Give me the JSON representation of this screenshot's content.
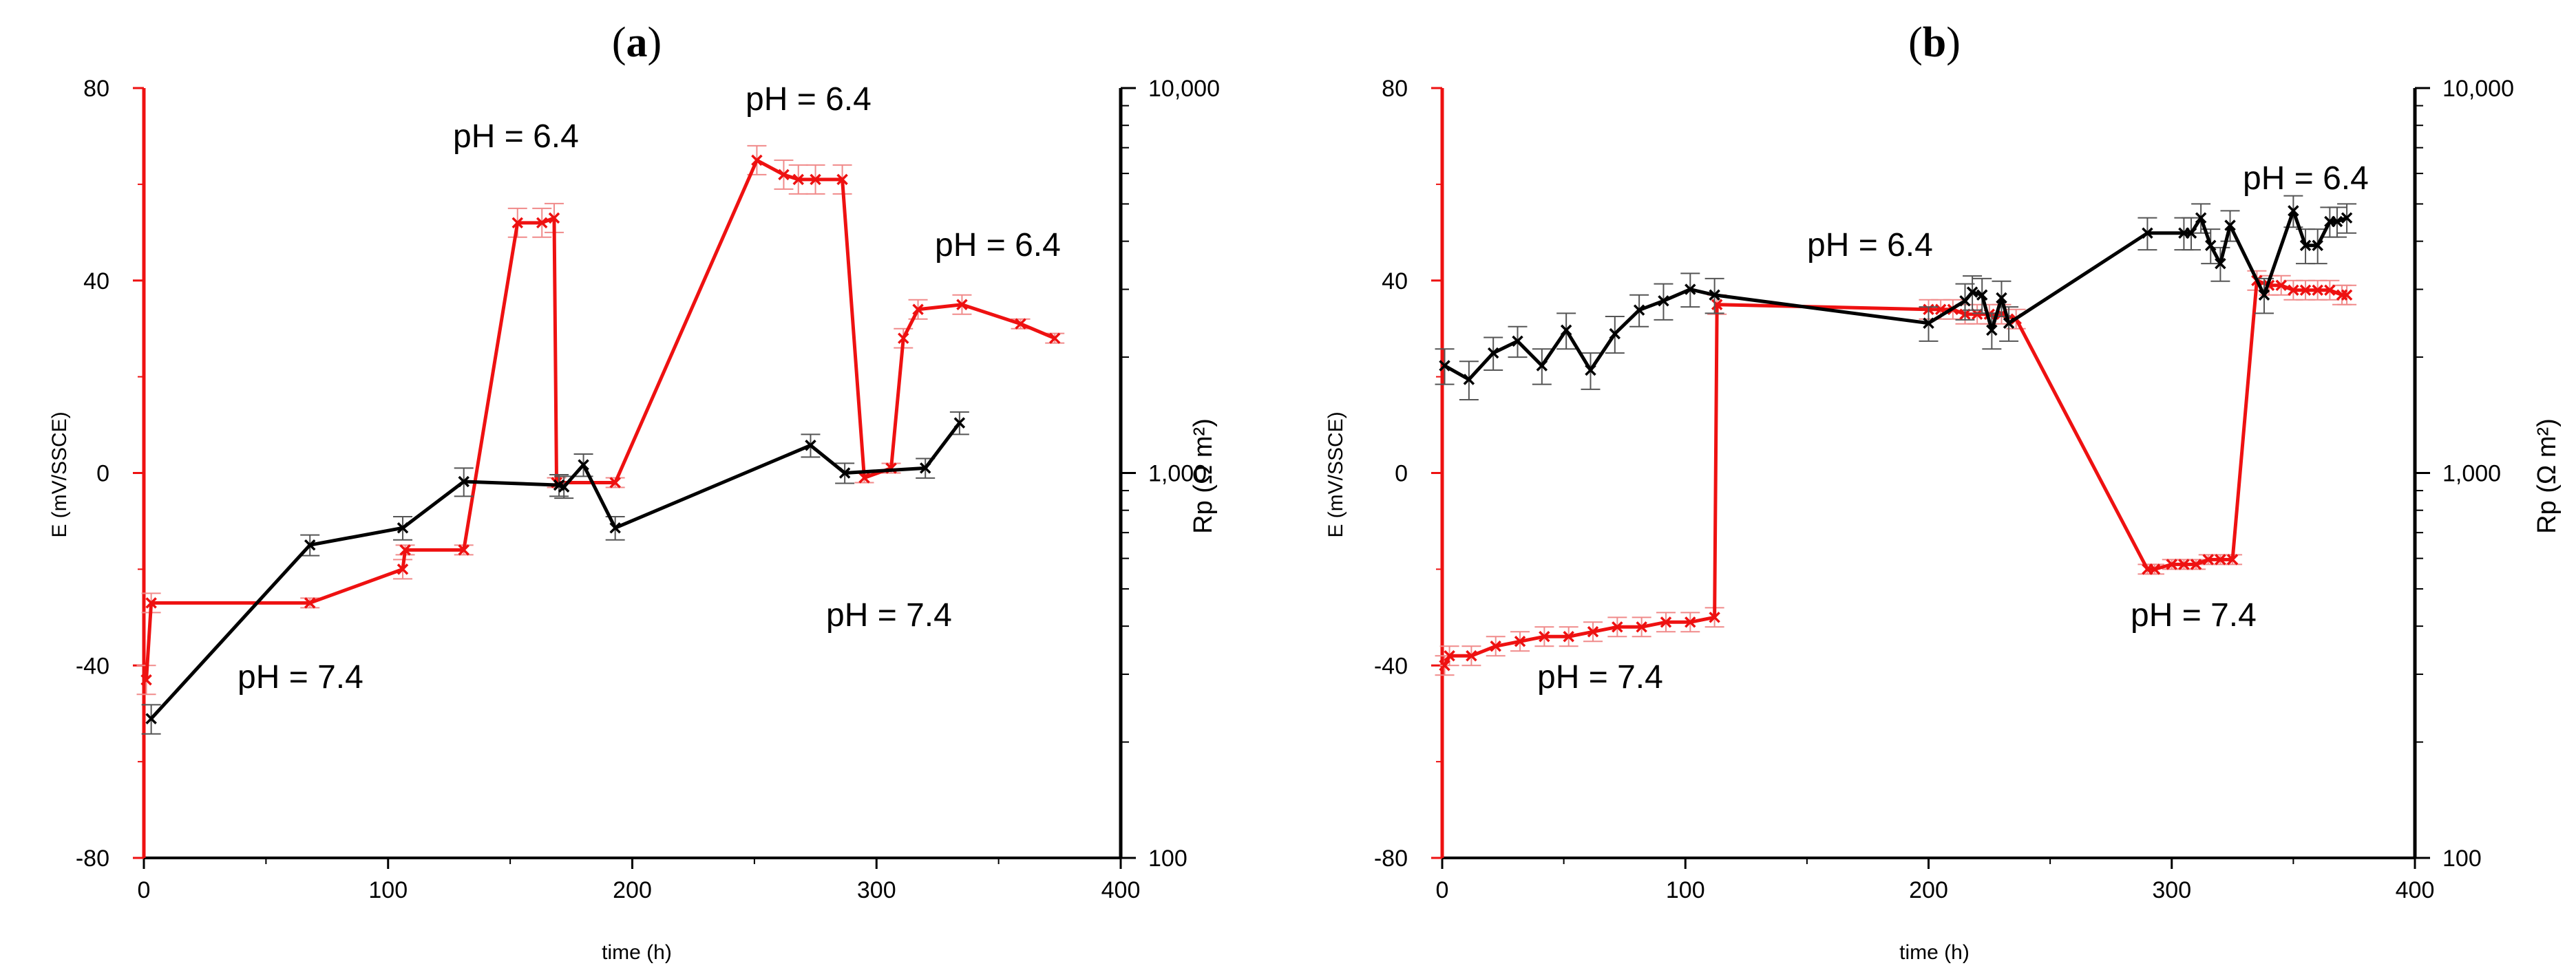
{
  "colors": {
    "potential": "#ee1111",
    "resistance": "#000000",
    "errorbar_red": "#f08a8a",
    "errorbar_black": "#555555"
  },
  "chart_data": [
    {
      "panel": "(a)",
      "title_paren_open": "(",
      "title_letter": "a",
      "title_paren_close": ")",
      "type": "line",
      "xlabel": "time (h)",
      "ylabel_left": "E (mV/SSCE)",
      "ylabel_right": "Rp (Ω m²)",
      "xlim": [
        0,
        400
      ],
      "xticks": [
        0,
        100,
        200,
        300,
        400
      ],
      "ylim_left": [
        -80,
        80
      ],
      "yticks_left": [
        -80,
        -40,
        0,
        40,
        80
      ],
      "ylim_right_log": [
        100,
        10000
      ],
      "yticks_right": [
        100,
        1000,
        10000
      ],
      "yticklabels_right": [
        "100",
        "1,000",
        "10,000"
      ],
      "series": [
        {
          "name": "E",
          "axis": "left",
          "color": "red",
          "x": [
            1,
            3,
            68,
            106,
            107,
            131,
            153,
            163,
            168,
            169,
            193,
            251,
            262,
            268,
            275,
            286,
            295,
            306,
            311,
            317,
            335,
            359,
            373
          ],
          "y": [
            -43,
            -27,
            -27,
            -20,
            -16,
            -16,
            52,
            52,
            53,
            -2,
            -2,
            65,
            62,
            61,
            61,
            61,
            -1,
            1,
            28,
            34,
            35,
            31,
            28
          ],
          "err": [
            3,
            2,
            1,
            2,
            1,
            1,
            3,
            3,
            3,
            1,
            1,
            3,
            3,
            3,
            3,
            3,
            1,
            1,
            2,
            2,
            2,
            1,
            1
          ]
        },
        {
          "name": "Rp",
          "axis": "right",
          "color": "black",
          "x": [
            3,
            68,
            106,
            131,
            170,
            172,
            180,
            193,
            273,
            287,
            320,
            334
          ],
          "y": [
            230,
            650,
            720,
            950,
            930,
            920,
            1050,
            720,
            1180,
            1000,
            1030,
            1350
          ],
          "err": [
            20,
            40,
            50,
            80,
            60,
            60,
            70,
            50,
            80,
            60,
            60,
            90
          ]
        }
      ],
      "annotations": [
        "pH = 6.4",
        "pH = 6.4",
        "pH = 6.4",
        "pH = 7.4",
        "pH = 7.4"
      ]
    },
    {
      "panel": "(b)",
      "title_paren_open": "(",
      "title_letter": "b",
      "title_paren_close": ")",
      "type": "line",
      "xlabel": "time (h)",
      "ylabel_left": "E (mV/SSCE)",
      "ylabel_right": "Rp (Ω m²)",
      "xlim": [
        0,
        400
      ],
      "xticks": [
        0,
        100,
        200,
        300,
        400
      ],
      "ylim_left": [
        -80,
        80
      ],
      "yticks_left": [
        -80,
        -40,
        0,
        40,
        80
      ],
      "ylim_right_log": [
        100,
        10000
      ],
      "yticks_right": [
        100,
        1000,
        10000
      ],
      "yticklabels_right": [
        "100",
        "1,000",
        "10,000"
      ],
      "series": [
        {
          "name": "E",
          "axis": "left",
          "color": "red",
          "x": [
            1,
            3,
            12,
            22,
            32,
            42,
            52,
            62,
            72,
            82,
            92,
            102,
            112,
            113,
            200,
            205,
            210,
            215,
            220,
            225,
            230,
            236,
            290,
            293,
            300,
            305,
            310,
            315,
            320,
            325,
            335,
            340,
            345,
            350,
            355,
            360,
            365,
            370,
            372
          ],
          "y": [
            -40,
            -38,
            -38,
            -36,
            -35,
            -34,
            -34,
            -33,
            -32,
            -32,
            -31,
            -31,
            -30,
            35,
            34,
            34,
            34,
            33,
            33,
            33,
            33,
            32,
            -20,
            -20,
            -19,
            -19,
            -19,
            -18,
            -18,
            -18,
            40,
            39,
            39,
            38,
            38,
            38,
            38,
            37,
            37
          ],
          "err": [
            2,
            2,
            2,
            2,
            2,
            2,
            2,
            2,
            2,
            2,
            2,
            2,
            2,
            2,
            2,
            2,
            2,
            2,
            2,
            2,
            2,
            2,
            1,
            1,
            1,
            1,
            1,
            1,
            1,
            1,
            2,
            2,
            2,
            2,
            2,
            2,
            2,
            2,
            2
          ]
        },
        {
          "name": "Rp",
          "axis": "right",
          "color": "black",
          "x": [
            1,
            11,
            21,
            31,
            41,
            51,
            61,
            71,
            81,
            91,
            102,
            112,
            200,
            215,
            218,
            222,
            226,
            230,
            233,
            290,
            305,
            308,
            312,
            316,
            320,
            324,
            338,
            350,
            355,
            360,
            365,
            368,
            372
          ],
          "y": [
            1900,
            1750,
            2050,
            2200,
            1900,
            2350,
            1850,
            2300,
            2650,
            2800,
            3000,
            2900,
            2450,
            2800,
            2950,
            2900,
            2350,
            2850,
            2450,
            4200,
            4200,
            4200,
            4600,
            3900,
            3500,
            4400,
            2900,
            4800,
            3900,
            3900,
            4500,
            4500,
            4600
          ],
          "err": [
            200,
            200,
            200,
            200,
            200,
            250,
            200,
            250,
            250,
            300,
            300,
            300,
            250,
            300,
            300,
            300,
            250,
            300,
            250,
            400,
            400,
            400,
            400,
            400,
            350,
            400,
            300,
            450,
            400,
            400,
            400,
            400,
            400
          ]
        }
      ],
      "annotations": [
        "pH = 6.4",
        "pH = 6.4",
        "pH = 7.4",
        "pH = 7.4"
      ]
    }
  ]
}
